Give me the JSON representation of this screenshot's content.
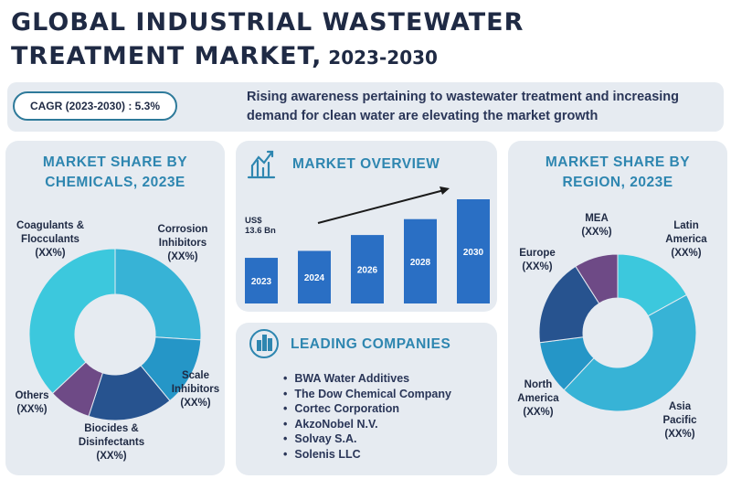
{
  "title": {
    "line1": "GLOBAL INDUSTRIAL WASTEWATER",
    "line2": "TREATMENT MARKET,",
    "years": " 2023-2030"
  },
  "cagr": "CAGR (2023-2030) : 5.3%",
  "banner_text": "Rising awareness pertaining to wastewater treatment and increasing demand for clean water are elevating the market growth",
  "chemicals": {
    "title_line1": "MARKET SHARE BY",
    "title_line2": "CHEMICALS, 2023E",
    "labels": {
      "coagulants": [
        "Coagulants &",
        "Flocculants",
        "(XX%)"
      ],
      "corrosion": [
        "Corrosion",
        "Inhibitors",
        "(XX%)"
      ],
      "scale": [
        "Scale",
        "Inhibitors",
        "(XX%)"
      ],
      "biocides": [
        "Biocides &",
        "Disinfectants",
        "(XX%)"
      ],
      "others": [
        "Others",
        "(XX%)"
      ]
    }
  },
  "overview": {
    "title": "MARKET OVERVIEW",
    "us_label_1": "US$",
    "us_label_2": "13.6 Bn"
  },
  "leading": {
    "title": "LEADING COMPANIES",
    "companies": [
      "BWA Water Additives",
      "The Dow Chemical Company",
      "Cortec Corporation",
      "AkzoNobel N.V.",
      "Solvay S.A.",
      "Solenis LLC"
    ]
  },
  "region": {
    "title_line1": "MARKET SHARE BY",
    "title_line2": "REGION, 2023E",
    "labels": {
      "mea": [
        "MEA",
        "(XX%)"
      ],
      "latam": [
        "Latin",
        "America",
        "(XX%)"
      ],
      "europe": [
        "Europe",
        "(XX%)"
      ],
      "na": [
        "North",
        "America",
        "(XX%)"
      ],
      "apac": [
        "Asia",
        "Pacific",
        "(XX%)"
      ]
    }
  },
  "colors": {
    "dark_navy": "#1f2a44",
    "accent_blue": "#2e86b0",
    "bar_blue": "#2a6fc4",
    "cyan": "#3cc8dd",
    "teal": "#37b3d6",
    "mid_blue": "#2596c7",
    "navy_slice": "#27538f",
    "purple": "#6e4a86"
  },
  "chart_data": [
    {
      "type": "pie",
      "title": "MARKET SHARE BY CHEMICALS, 2023E",
      "slices": [
        {
          "name": "Coagulants & Flocculants",
          "value": 37
        },
        {
          "name": "Corrosion Inhibitors",
          "value": 26
        },
        {
          "name": "Scale Inhibitors",
          "value": 13
        },
        {
          "name": "Biocides & Disinfectants",
          "value": 16
        },
        {
          "name": "Others",
          "value": 8
        }
      ]
    },
    {
      "type": "bar",
      "title": "MARKET OVERVIEW",
      "categories": [
        "2023",
        "2024",
        "2026",
        "2028",
        "2030"
      ],
      "values": [
        13.6,
        14.3,
        15.9,
        17.5,
        19.5
      ],
      "ylim": [
        0,
        20
      ]
    },
    {
      "type": "pie",
      "title": "MARKET SHARE BY REGION, 2023E",
      "slices": [
        {
          "name": "Latin America",
          "value": 17
        },
        {
          "name": "Asia Pacific",
          "value": 45
        },
        {
          "name": "North America",
          "value": 11
        },
        {
          "name": "Europe",
          "value": 18
        },
        {
          "name": "MEA",
          "value": 9
        }
      ]
    }
  ]
}
